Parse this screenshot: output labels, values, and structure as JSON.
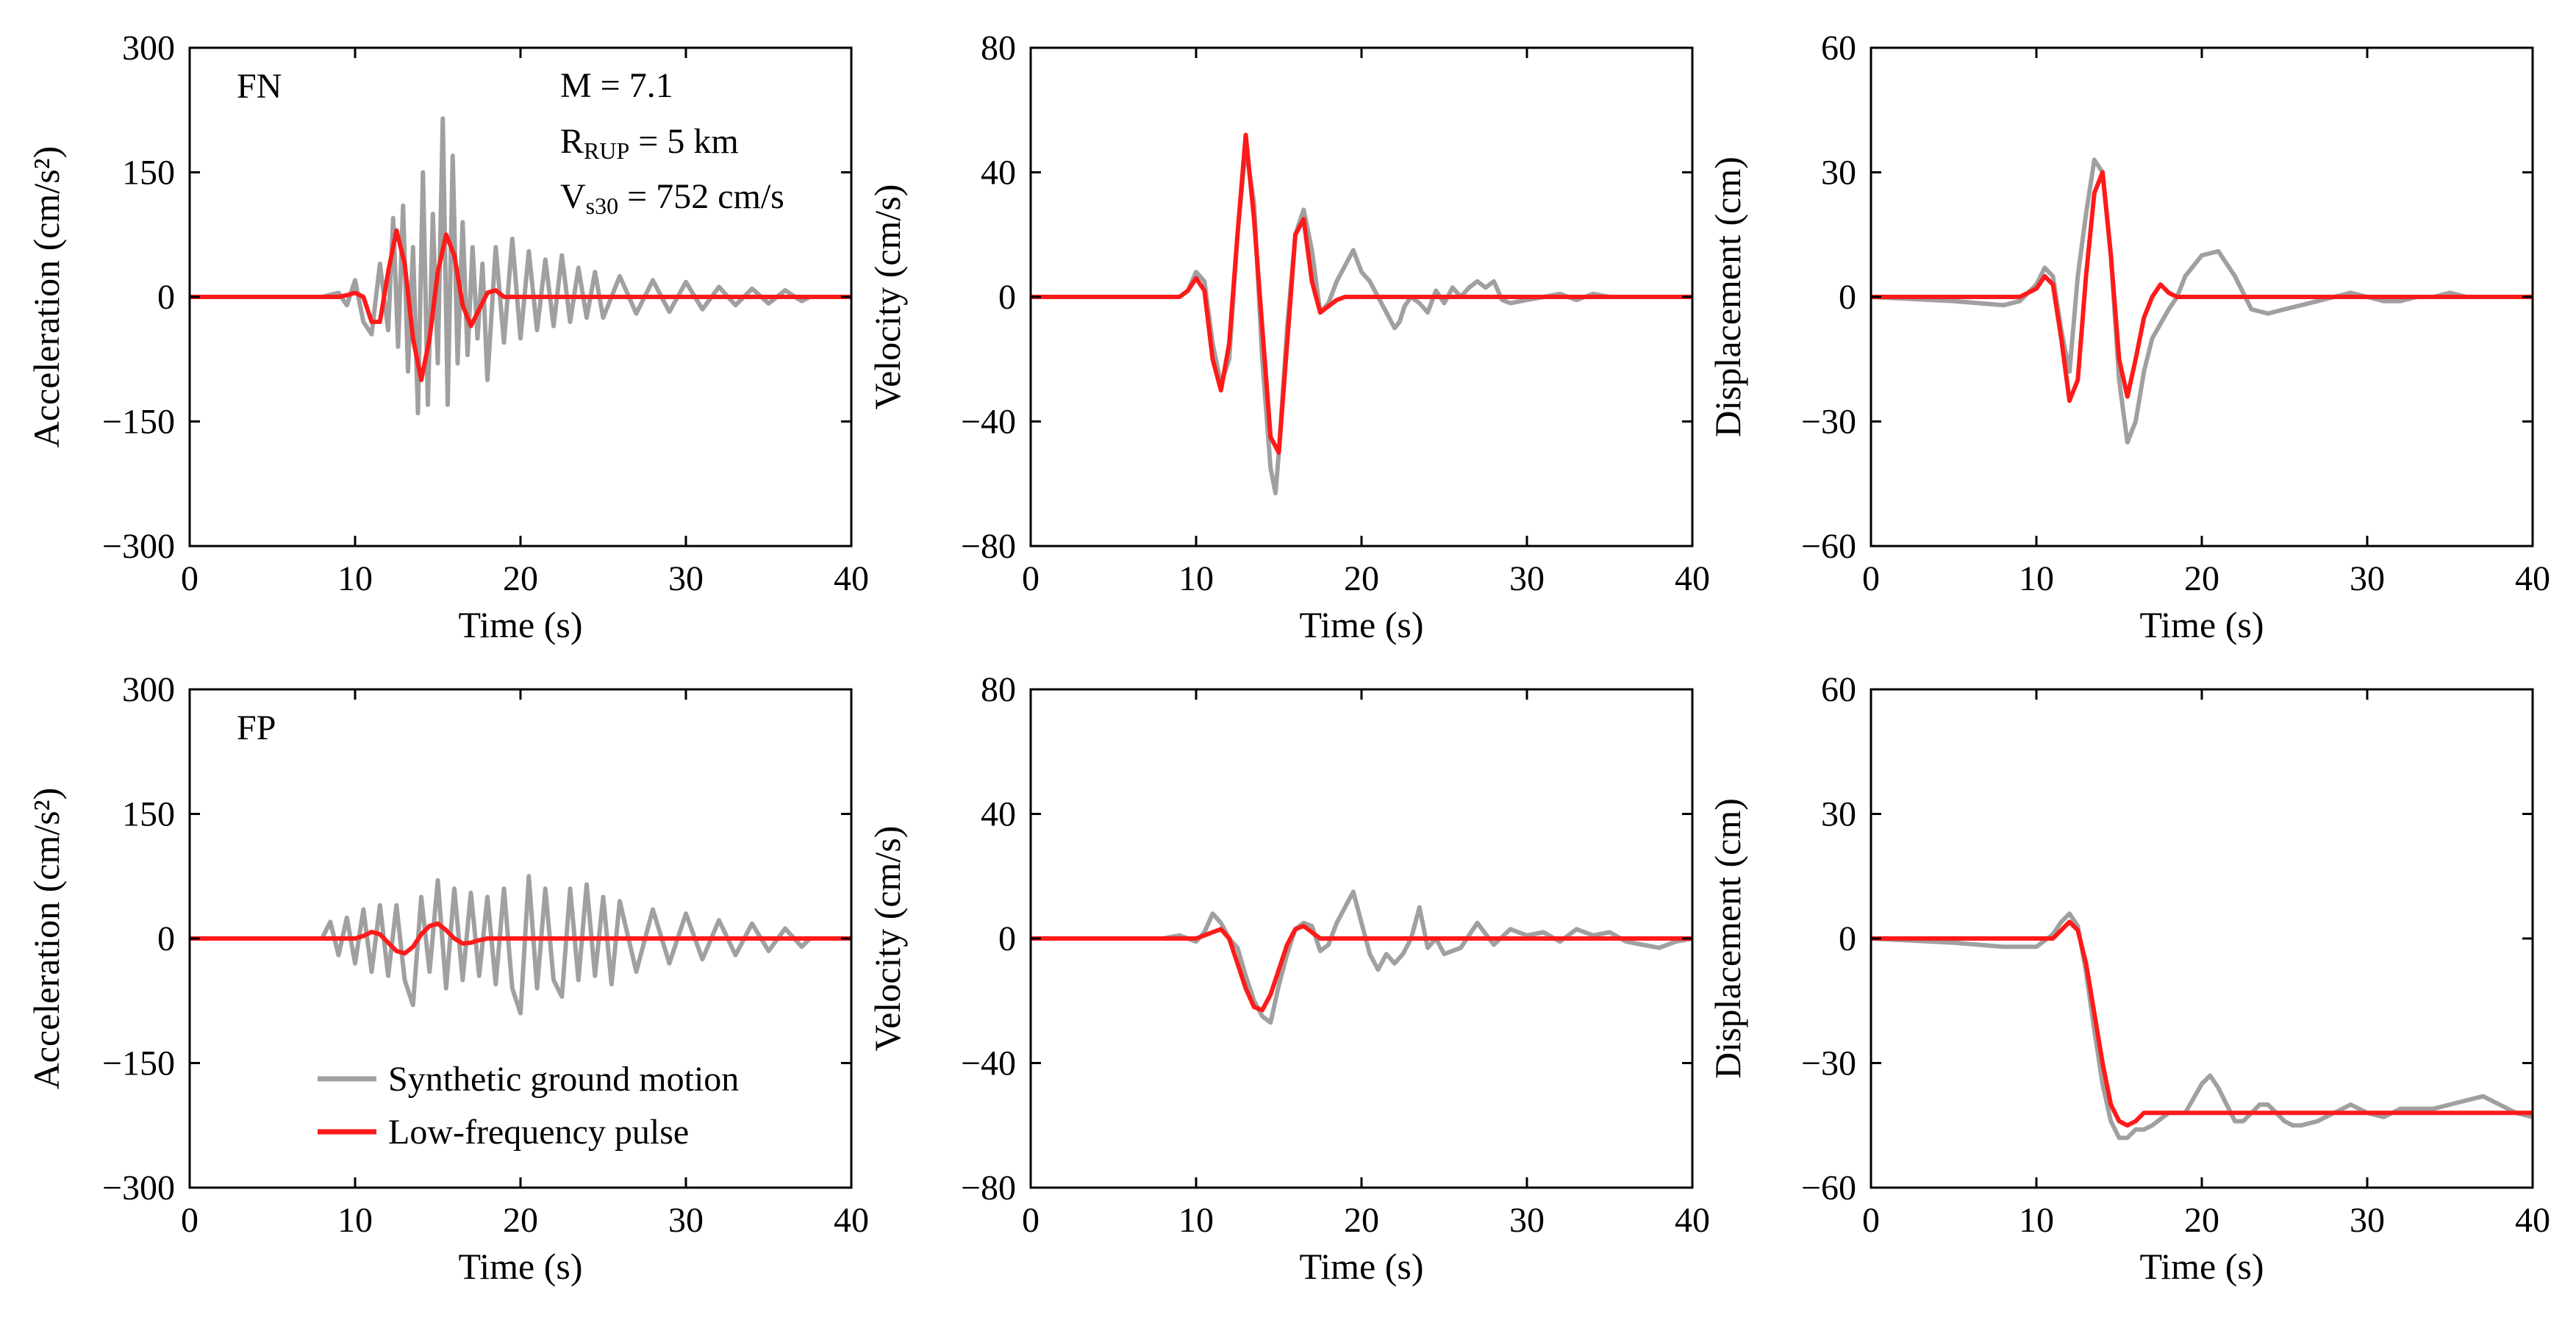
{
  "figure": {
    "annotation": {
      "magnitude": "M = 7.1",
      "rrup_prefix": "R",
      "rrup_sub": "RUP",
      "rrup_value": " = 5 km",
      "vs30_prefix": "V",
      "vs30_sub": "s30",
      "vs30_value": " = 752 cm/s"
    },
    "legend": {
      "synthetic": "Synthetic ground motion",
      "pulse": "Low-frequency pulse"
    },
    "colors": {
      "synthetic": "#a0a0a0",
      "pulse": "#ff1a1a",
      "axis": "#000000"
    }
  },
  "chart_data": [
    {
      "id": "fn-acc",
      "type": "line",
      "row_label": "FN",
      "xlabel": "Time (s)",
      "ylabel": "Acceleration (cm/s²)",
      "xlim": [
        0,
        40
      ],
      "ylim": [
        -300,
        300
      ],
      "xticks": [
        0,
        10,
        20,
        30,
        40
      ],
      "yticks": [
        300,
        150,
        0,
        -150,
        -300
      ],
      "ytick_labels": [
        "300",
        "150",
        "0",
        "−150",
        "−300"
      ],
      "series": [
        {
          "name": "Synthetic ground motion",
          "x": [
            0,
            8,
            9,
            9.5,
            10,
            10.5,
            11,
            11.5,
            12,
            12.3,
            12.6,
            12.9,
            13.2,
            13.5,
            13.8,
            14.1,
            14.4,
            14.7,
            15,
            15.3,
            15.6,
            15.9,
            16.2,
            16.5,
            16.8,
            17.1,
            17.4,
            17.7,
            18,
            18.5,
            19,
            19.5,
            20,
            20.5,
            21,
            21.5,
            22,
            22.5,
            23,
            23.5,
            24,
            24.5,
            25,
            26,
            27,
            28,
            29,
            30,
            31,
            32,
            33,
            34,
            35,
            36,
            37,
            37.5
          ],
          "y": [
            0,
            0,
            5,
            -10,
            20,
            -30,
            -45,
            40,
            -40,
            95,
            -60,
            110,
            -90,
            60,
            -140,
            150,
            -130,
            100,
            -80,
            215,
            -130,
            170,
            -80,
            90,
            -70,
            60,
            -50,
            40,
            -100,
            60,
            -55,
            70,
            -50,
            55,
            -40,
            45,
            -35,
            50,
            -30,
            35,
            -25,
            30,
            -25,
            25,
            -20,
            20,
            -18,
            18,
            -15,
            12,
            -10,
            10,
            -8,
            8,
            -5,
            0
          ]
        },
        {
          "name": "Low-frequency pulse",
          "x": [
            0,
            9,
            9.5,
            10,
            10.5,
            11,
            11.5,
            12,
            12.5,
            13,
            13.5,
            14,
            14.5,
            15,
            15.5,
            16,
            16.5,
            17,
            17.5,
            18,
            18.5,
            19,
            19.5,
            20,
            40
          ],
          "y": [
            0,
            0,
            2,
            5,
            0,
            -30,
            -30,
            30,
            80,
            40,
            -50,
            -100,
            -50,
            30,
            75,
            50,
            -10,
            -35,
            -15,
            5,
            8,
            0,
            0,
            0,
            0
          ]
        }
      ]
    },
    {
      "id": "fn-vel",
      "type": "line",
      "row_label": "",
      "xlabel": "Time (s)",
      "ylabel": "Velocity (cm/s)",
      "xlim": [
        0,
        40
      ],
      "ylim": [
        -80,
        80
      ],
      "xticks": [
        0,
        10,
        20,
        30,
        40
      ],
      "yticks": [
        80,
        40,
        0,
        -40,
        -80
      ],
      "ytick_labels": [
        "80",
        "40",
        "0",
        "−40",
        "−80"
      ],
      "series": [
        {
          "name": "Synthetic ground motion",
          "x": [
            0,
            9,
            9.5,
            10,
            10.5,
            11,
            11.5,
            12,
            12.5,
            13,
            13.5,
            14,
            14.5,
            14.8,
            15,
            15.5,
            16,
            16.5,
            17,
            17.5,
            18,
            18.5,
            19,
            19.5,
            20,
            20.5,
            21,
            21.5,
            22,
            22.3,
            22.6,
            23,
            23.5,
            24,
            24.5,
            25,
            25.5,
            26,
            26.5,
            27,
            27.5,
            28,
            28.5,
            29,
            30,
            31,
            32,
            33,
            34,
            35,
            36,
            37,
            38,
            40
          ],
          "y": [
            0,
            0,
            2,
            8,
            5,
            -15,
            -28,
            -20,
            20,
            48,
            30,
            -20,
            -55,
            -63,
            -50,
            -10,
            20,
            28,
            15,
            -5,
            -2,
            5,
            10,
            15,
            8,
            5,
            0,
            -5,
            -10,
            -8,
            -3,
            0,
            -2,
            -5,
            2,
            -2,
            3,
            0,
            3,
            5,
            3,
            5,
            -1,
            -2,
            -1,
            0,
            1,
            -1,
            1,
            0,
            0,
            0,
            0,
            0
          ]
        },
        {
          "name": "Low-frequency pulse",
          "x": [
            0,
            9,
            9.5,
            10,
            10.5,
            11,
            11.5,
            12,
            12.5,
            13,
            13.5,
            14,
            14.5,
            15,
            15.5,
            16,
            16.5,
            17,
            17.5,
            18,
            18.5,
            19,
            40
          ],
          "y": [
            0,
            0,
            2,
            6,
            2,
            -20,
            -30,
            -15,
            20,
            52,
            25,
            -10,
            -45,
            -50,
            -15,
            20,
            25,
            5,
            -5,
            -3,
            -1,
            0,
            0
          ]
        }
      ]
    },
    {
      "id": "fn-disp",
      "type": "line",
      "row_label": "",
      "xlabel": "Time (s)",
      "ylabel": "Displacement (cm)",
      "xlim": [
        0,
        40
      ],
      "ylim": [
        -60,
        60
      ],
      "xticks": [
        0,
        10,
        20,
        30,
        40
      ],
      "yticks": [
        60,
        30,
        0,
        -30,
        -60
      ],
      "ytick_labels": [
        "60",
        "30",
        "0",
        "−30",
        "−60"
      ],
      "series": [
        {
          "name": "Synthetic ground motion",
          "x": [
            0,
            5,
            8,
            9,
            10,
            10.5,
            11,
            11.5,
            12,
            12.5,
            13,
            13.5,
            14,
            14.5,
            15,
            15.5,
            16,
            16.5,
            17,
            18,
            18.5,
            19,
            20,
            21,
            22,
            23,
            24,
            25,
            26,
            27,
            28,
            29,
            30,
            31,
            32,
            33,
            34,
            35,
            36,
            37,
            38,
            40
          ],
          "y": [
            0,
            -1,
            -2,
            -1,
            3,
            7,
            5,
            -8,
            -18,
            5,
            20,
            33,
            30,
            10,
            -20,
            -35,
            -30,
            -18,
            -10,
            -3,
            0,
            5,
            10,
            11,
            5,
            -3,
            -4,
            -3,
            -2,
            -1,
            0,
            1,
            0,
            -1,
            -1,
            0,
            0,
            1,
            0,
            0,
            0,
            0
          ]
        },
        {
          "name": "Low-frequency pulse",
          "x": [
            0,
            9,
            10,
            10.5,
            11,
            11.5,
            12,
            12.5,
            13,
            13.5,
            14,
            14.5,
            15,
            15.5,
            16,
            16.5,
            17,
            17.5,
            18,
            18.5,
            19,
            40
          ],
          "y": [
            0,
            0,
            2,
            5,
            3,
            -10,
            -25,
            -20,
            5,
            25,
            30,
            10,
            -15,
            -24,
            -15,
            -5,
            0,
            3,
            1,
            0,
            0,
            0
          ]
        }
      ]
    },
    {
      "id": "fp-acc",
      "type": "line",
      "row_label": "FP",
      "xlabel": "Time (s)",
      "ylabel": "Acceleration (cm/s²)",
      "xlim": [
        0,
        40
      ],
      "ylim": [
        -300,
        300
      ],
      "xticks": [
        0,
        10,
        20,
        30,
        40
      ],
      "yticks": [
        300,
        150,
        0,
        -150,
        -300
      ],
      "ytick_labels": [
        "300",
        "150",
        "0",
        "−150",
        "−300"
      ],
      "series": [
        {
          "name": "Synthetic ground motion",
          "x": [
            0,
            8,
            8.5,
            9,
            9.5,
            10,
            10.5,
            11,
            11.5,
            12,
            12.5,
            13,
            13.5,
            14,
            14.5,
            15,
            15.5,
            16,
            16.5,
            17,
            17.5,
            18,
            18.5,
            19,
            19.5,
            20,
            20.5,
            21,
            21.5,
            22,
            22.5,
            23,
            23.5,
            24,
            24.5,
            25,
            25.5,
            26,
            27,
            28,
            29,
            30,
            31,
            32,
            33,
            34,
            35,
            36,
            37,
            37.5
          ],
          "y": [
            0,
            0,
            20,
            -20,
            25,
            -30,
            35,
            -40,
            40,
            -45,
            40,
            -50,
            -80,
            50,
            -40,
            70,
            -60,
            60,
            -50,
            55,
            -45,
            50,
            -55,
            60,
            -60,
            -90,
            75,
            -60,
            60,
            -50,
            -70,
            60,
            -50,
            65,
            -45,
            50,
            -55,
            45,
            -40,
            35,
            -30,
            30,
            -25,
            22,
            -20,
            18,
            -15,
            12,
            -10,
            0
          ]
        },
        {
          "name": "Low-frequency pulse",
          "x": [
            0,
            10,
            10.5,
            11,
            11.5,
            12,
            12.5,
            13,
            13.5,
            14,
            14.5,
            15,
            15.5,
            16,
            16.5,
            17,
            17.5,
            18,
            40
          ],
          "y": [
            0,
            0,
            3,
            8,
            5,
            -5,
            -15,
            -18,
            -10,
            5,
            15,
            18,
            10,
            0,
            -6,
            -5,
            -2,
            0,
            0
          ]
        }
      ]
    },
    {
      "id": "fp-vel",
      "type": "line",
      "row_label": "",
      "xlabel": "Time (s)",
      "ylabel": "Velocity (cm/s)",
      "xlim": [
        0,
        40
      ],
      "ylim": [
        -80,
        80
      ],
      "xticks": [
        0,
        10,
        20,
        30,
        40
      ],
      "yticks": [
        80,
        40,
        0,
        -40,
        -80
      ],
      "ytick_labels": [
        "80",
        "40",
        "0",
        "−40",
        "−80"
      ],
      "series": [
        {
          "name": "Synthetic ground motion",
          "x": [
            0,
            8,
            9,
            10,
            10.5,
            11,
            11.5,
            12,
            12.5,
            13,
            13.5,
            14,
            14.5,
            15,
            15.5,
            16,
            16.5,
            17,
            17.5,
            18,
            18.5,
            19,
            19.5,
            20,
            20.5,
            21,
            21.5,
            22,
            22.5,
            23,
            23.5,
            24,
            24.5,
            25,
            26,
            27,
            28,
            29,
            30,
            31,
            32,
            33,
            34,
            35,
            36,
            37,
            38,
            39,
            40
          ],
          "y": [
            0,
            0,
            1,
            -1,
            2,
            8,
            5,
            0,
            -3,
            -12,
            -20,
            -25,
            -27,
            -15,
            -5,
            3,
            5,
            4,
            -4,
            -2,
            5,
            10,
            15,
            5,
            -5,
            -10,
            -5,
            -8,
            -5,
            0,
            10,
            -3,
            0,
            -5,
            -3,
            5,
            -2,
            3,
            1,
            2,
            -1,
            3,
            1,
            2,
            -1,
            -2,
            -3,
            -1,
            0
          ]
        },
        {
          "name": "Low-frequency pulse",
          "x": [
            0,
            10,
            10.5,
            11,
            11.5,
            12,
            12.5,
            13,
            13.5,
            14,
            14.5,
            15,
            15.5,
            16,
            16.5,
            17,
            17.5,
            18,
            40
          ],
          "y": [
            0,
            0,
            1,
            2,
            3,
            0,
            -8,
            -16,
            -22,
            -23,
            -18,
            -10,
            -2,
            3,
            4,
            2,
            0,
            0,
            0
          ]
        }
      ]
    },
    {
      "id": "fp-disp",
      "type": "line",
      "row_label": "",
      "xlabel": "Time (s)",
      "ylabel": "Displacement (cm)",
      "xlim": [
        0,
        40
      ],
      "ylim": [
        -60,
        60
      ],
      "xticks": [
        0,
        10,
        20,
        30,
        40
      ],
      "yticks": [
        60,
        30,
        0,
        -30,
        -60
      ],
      "ytick_labels": [
        "60",
        "30",
        "0",
        "−30",
        "−60"
      ],
      "series": [
        {
          "name": "Synthetic ground motion",
          "x": [
            0,
            5,
            8,
            10,
            11,
            11.5,
            12,
            12.5,
            13,
            13.5,
            14,
            14.5,
            15,
            15.5,
            16,
            16.5,
            17,
            18,
            19,
            20,
            20.5,
            21,
            21.5,
            22,
            22.5,
            23,
            23.5,
            24,
            24.5,
            25,
            25.5,
            26,
            27,
            28,
            29,
            30,
            31,
            32,
            33,
            34,
            35,
            36,
            37,
            38,
            39,
            40
          ],
          "y": [
            0,
            -1,
            -2,
            -2,
            1,
            4,
            6,
            3,
            -8,
            -22,
            -35,
            -44,
            -48,
            -48,
            -46,
            -46,
            -45,
            -42,
            -42,
            -35,
            -33,
            -36,
            -40,
            -44,
            -44,
            -42,
            -40,
            -40,
            -42,
            -44,
            -45,
            -45,
            -44,
            -42,
            -40,
            -42,
            -43,
            -41,
            -41,
            -41,
            -40,
            -39,
            -38,
            -40,
            -42,
            -43
          ]
        },
        {
          "name": "Low-frequency pulse",
          "x": [
            0,
            11,
            11.5,
            12,
            12.5,
            13,
            13.5,
            14,
            14.5,
            15,
            15.5,
            16,
            16.5,
            17,
            40
          ],
          "y": [
            0,
            0,
            2,
            4,
            2,
            -6,
            -18,
            -30,
            -40,
            -44,
            -45,
            -44,
            -42,
            -42,
            -42
          ]
        }
      ]
    }
  ]
}
